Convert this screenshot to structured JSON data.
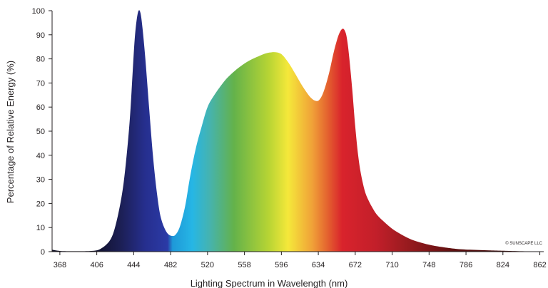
{
  "chart_data": {
    "type": "area",
    "xlabel": "Lighting Spectrum in Wavelength (nm)",
    "ylabel": "Percentage of Relative Energy (%)",
    "xlim": [
      360,
      866
    ],
    "ylim": [
      0,
      100
    ],
    "x_ticks": [
      368,
      406,
      444,
      482,
      520,
      558,
      596,
      634,
      672,
      710,
      748,
      786,
      824,
      862
    ],
    "y_ticks": [
      0,
      10,
      20,
      30,
      40,
      50,
      60,
      70,
      80,
      90,
      100
    ],
    "grid": false,
    "annotations": [
      "© SUNSCAPE LLC"
    ],
    "fill": "spectral gradient (dark blue → blue → cyan → green → yellow → orange → red → dark red)",
    "series": [
      {
        "x": [
          360,
          368,
          380,
          400,
          410,
          420,
          426,
          432,
          436,
          440,
          443,
          445,
          447,
          449,
          451,
          453,
          456,
          460,
          464,
          468,
          472,
          478,
          484,
          488,
          492,
          497,
          502,
          508,
          514,
          520,
          527,
          534,
          540,
          548,
          556,
          564,
          572,
          580,
          588,
          594,
          598,
          604,
          610,
          618,
          626,
          632,
          636,
          640,
          645,
          650,
          655,
          659,
          662,
          664,
          666,
          669,
          672,
          675,
          678,
          682,
          686,
          690,
          694,
          700,
          710,
          720,
          730,
          740,
          750,
          760,
          775,
          790,
          810,
          830,
          866
        ],
        "y": [
          0.8,
          0.3,
          0.2,
          0.3,
          1.2,
          5,
          12,
          24,
          37,
          55,
          75,
          88,
          96,
          100,
          99,
          93,
          80,
          59,
          39,
          24,
          14,
          8,
          6.5,
          7.5,
          11,
          19,
          31,
          43,
          52,
          60,
          65,
          69,
          72,
          75,
          77.5,
          79.5,
          81,
          82.3,
          82.8,
          82.4,
          81.2,
          78,
          74,
          68.5,
          64,
          62.5,
          63.5,
          67,
          74,
          83,
          90,
          92.5,
          91,
          87,
          80,
          67,
          52,
          40,
          32,
          25,
          21,
          18,
          15.5,
          13,
          9.5,
          7,
          5,
          3.7,
          2.7,
          2,
          1.2,
          0.8,
          0.5,
          0.3,
          0
        ]
      }
    ]
  }
}
